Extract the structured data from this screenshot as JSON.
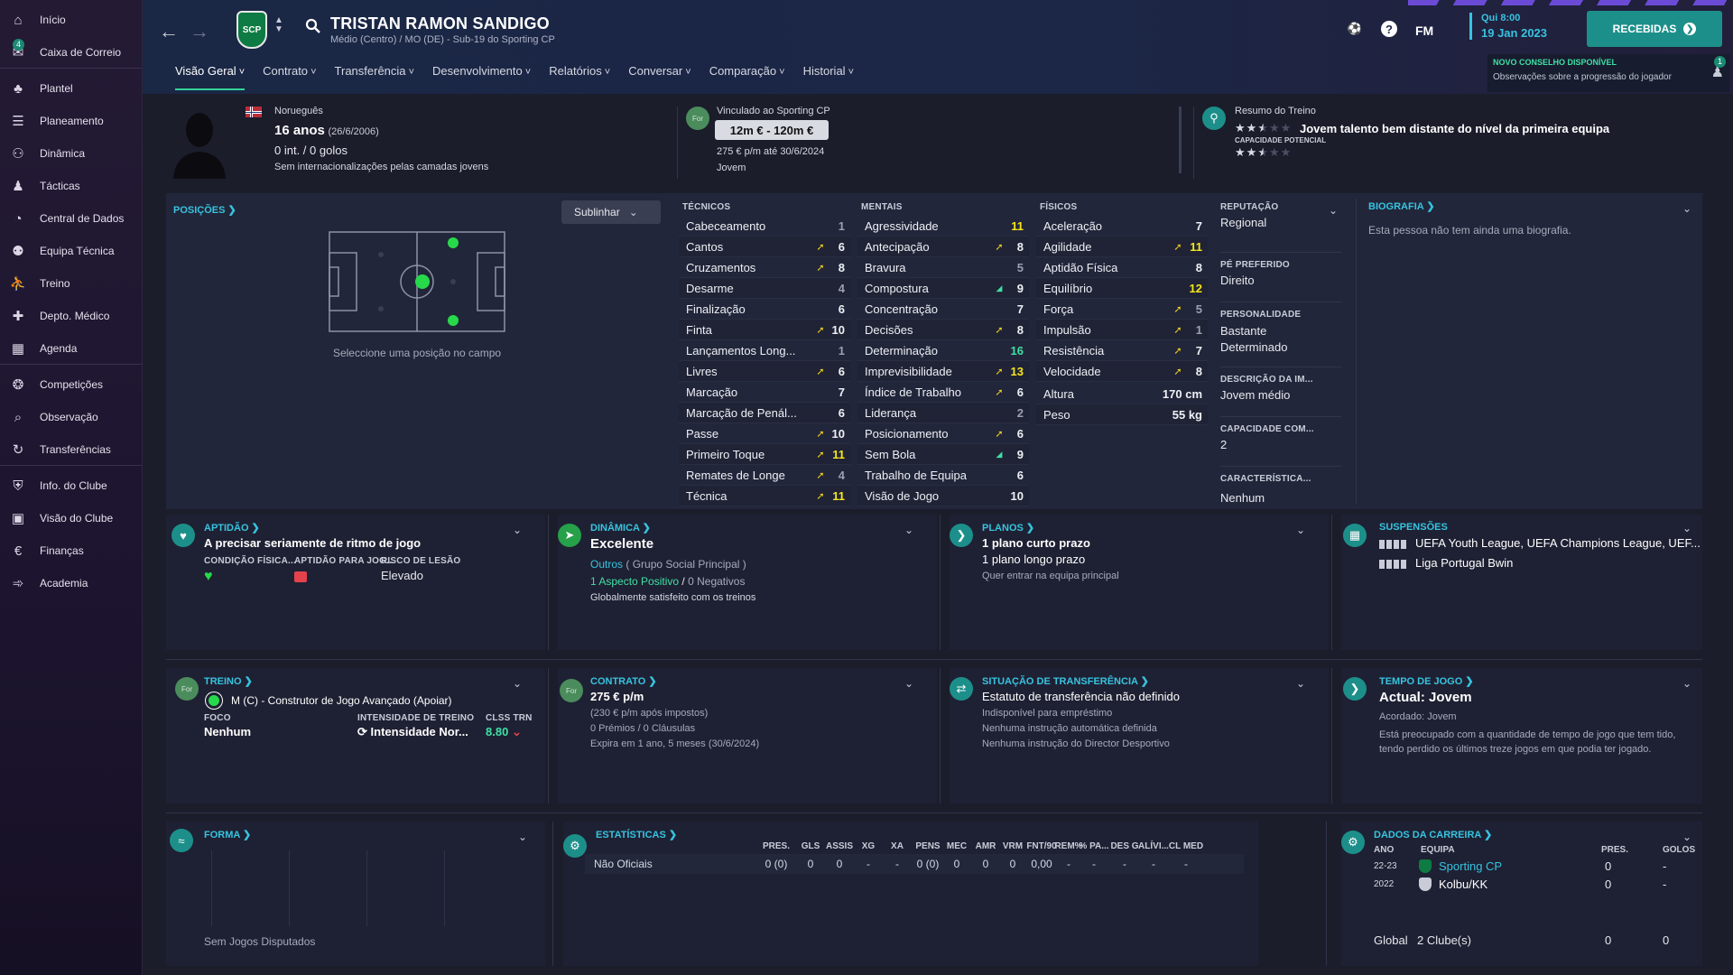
{
  "sidebar": {
    "items": [
      {
        "label": "Início",
        "icon": "home-icon"
      },
      {
        "label": "Caixa de Correio",
        "icon": "mail-icon",
        "badge": "4"
      },
      {
        "label": "Plantel",
        "icon": "shirt-icon"
      },
      {
        "label": "Planeamento",
        "icon": "planner-icon"
      },
      {
        "label": "Dinâmica",
        "icon": "people-icon"
      },
      {
        "label": "Tácticas",
        "icon": "tactics-icon"
      },
      {
        "label": "Central de Dados",
        "icon": "data-icon"
      },
      {
        "label": "Equipa Técnica",
        "icon": "staff-icon"
      },
      {
        "label": "Treino",
        "icon": "training-icon"
      },
      {
        "label": "Depto. Médico",
        "icon": "medical-icon"
      },
      {
        "label": "Agenda",
        "icon": "calendar-icon"
      },
      {
        "label": "Competições",
        "icon": "trophy-icon"
      },
      {
        "label": "Observação",
        "icon": "scout-icon"
      },
      {
        "label": "Transferências",
        "icon": "transfer-icon"
      },
      {
        "label": "Info. do Clube",
        "icon": "club-info-icon"
      },
      {
        "label": "Visão do Clube",
        "icon": "club-vision-icon"
      },
      {
        "label": "Finanças",
        "icon": "finance-icon"
      },
      {
        "label": "Academia",
        "icon": "academy-icon"
      }
    ]
  },
  "header": {
    "crest_text": "SCP",
    "player_name": "TRISTAN RAMON SANDIGO",
    "player_sub": "Médio (Centro) / MO (DE) - Sub-19 do Sporting CP",
    "tabs": [
      "Visão Geral",
      "Contrato",
      "Transferência",
      "Desenvolvimento",
      "Relatórios",
      "Conversar",
      "Comparação",
      "Historial"
    ],
    "fm": "FM",
    "time": "Qui 8:00",
    "date": "19 Jan 2023",
    "received": "RECEBIDAS",
    "notif_title": "NOVO CONSELHO DISPONÍVEL",
    "notif_count": "1",
    "notif_text": "Observações sobre a progressão do jogador"
  },
  "profile": {
    "nationality": "Norueguês",
    "age": "16 anos",
    "dob": "(26/6/2006)",
    "caps": "0 int. / 0 golos",
    "youth": "Sem internacionalizações pelas camadas jovens",
    "club_badge": "For",
    "contract_title": "Vinculado ao Sporting CP",
    "value": "12m € - 120m €",
    "wage": "275 € p/m até 30/6/2024",
    "status": "Jovem",
    "training_title": "Resumo do Treino",
    "training_text": "Jovem talento bem distante do nível da primeira equipa",
    "potential_label": "CAPACIDADE POTENCIAL",
    "current_stars": 2.5,
    "potential_stars": 2.5
  },
  "positions": {
    "title": "POSIÇÕES",
    "highlight": "Sublinhar",
    "hint": "Seleccione uma posição no campo"
  },
  "attributes": {
    "tecnicos": {
      "title": "TÉCNICOS",
      "rows": [
        [
          "Cabeceamento",
          "",
          "1"
        ],
        [
          "Cantos",
          "up",
          "6"
        ],
        [
          "Cruzamentos",
          "up",
          "8"
        ],
        [
          "Desarme",
          "",
          "4"
        ],
        [
          "Finalização",
          "",
          "6"
        ],
        [
          "Finta",
          "up",
          "10"
        ],
        [
          "Lançamentos Long...",
          "",
          "1"
        ],
        [
          "Livres",
          "up",
          "6"
        ],
        [
          "Marcação",
          "",
          "7"
        ],
        [
          "Marcação de Penál...",
          "",
          "6"
        ],
        [
          "Passe",
          "up",
          "10"
        ],
        [
          "Primeiro Toque",
          "up",
          "11"
        ],
        [
          "Remates de Longe",
          "up",
          "4"
        ],
        [
          "Técnica",
          "up",
          "11"
        ]
      ]
    },
    "mentais": {
      "title": "MENTAIS",
      "rows": [
        [
          "Agressividade",
          "",
          "11"
        ],
        [
          "Antecipação",
          "up",
          "8"
        ],
        [
          "Bravura",
          "",
          "5"
        ],
        [
          "Compostura",
          "up-g",
          "9"
        ],
        [
          "Concentração",
          "",
          "7"
        ],
        [
          "Decisões",
          "up",
          "8"
        ],
        [
          "Determinação",
          "",
          "16"
        ],
        [
          "Imprevisibilidade",
          "up",
          "13"
        ],
        [
          "Índice de Trabalho",
          "up",
          "6"
        ],
        [
          "Liderança",
          "",
          "2"
        ],
        [
          "Posicionamento",
          "up",
          "6"
        ],
        [
          "Sem Bola",
          "up-g",
          "9"
        ],
        [
          "Trabalho de Equipa",
          "",
          "6"
        ],
        [
          "Visão de Jogo",
          "",
          "10"
        ]
      ]
    },
    "fisicos": {
      "title": "FÍSICOS",
      "rows": [
        [
          "Aceleração",
          "",
          "7"
        ],
        [
          "Agilidade",
          "up",
          "11"
        ],
        [
          "Aptidão Física",
          "",
          "8"
        ],
        [
          "Equilíbrio",
          "",
          "12"
        ],
        [
          "Força",
          "up",
          "5"
        ],
        [
          "Impulsão",
          "up",
          "1"
        ],
        [
          "Resistência",
          "up",
          "7"
        ],
        [
          "Velocidade",
          "up",
          "8"
        ]
      ],
      "height_label": "Altura",
      "height": "170 cm",
      "weight_label": "Peso",
      "weight": "55 kg"
    }
  },
  "info": {
    "reputation_label": "REPUTAÇÃO",
    "reputation": "Regional",
    "foot_label": "PÉ PREFERIDO",
    "foot": "Direito",
    "personality_label": "PERSONALIDADE",
    "personality": "Bastante Determinado",
    "media_label": "DESCRIÇÃO DA IM...",
    "media": "Jovem médio",
    "command_label": "CAPACIDADE COM...",
    "command": "2",
    "traits_label": "CARACTERÍSTICA...",
    "traits": "Nenhum",
    "bio_title": "BIOGRAFIA",
    "bio_text": "Esta pessoa não tem ainda uma biografia."
  },
  "panels": {
    "aptidao": {
      "title": "APTIDÃO",
      "text": "A precisar seriamente de ritmo de jogo",
      "l1": "CONDIÇÃO FÍSICA...",
      "l2": "APTIDÃO PARA JOG...",
      "l3": "RISCO DE LESÃO",
      "v3": "Elevado"
    },
    "dinamica": {
      "title": "DINÂMICA",
      "text": "Excelente",
      "group": "Outros",
      "group_sub": "( Grupo Social Principal )",
      "pos": "1 Aspecto Positivo",
      "sep": "/",
      "neg": "0 Negativos",
      "note": "Globalmente satisfeito com os treinos"
    },
    "planos": {
      "title": "PLANOS",
      "l1": "1 plano curto prazo",
      "l2": "1 plano longo prazo",
      "note": "Quer entrar na equipa principal"
    },
    "suspensoes": {
      "title": "SUSPENSÕES",
      "l1": "UEFA Youth League, UEFA Champions League, UEF...",
      "l2": "Liga Portugal Bwin"
    },
    "treino": {
      "title": "TREINO",
      "role": "M (C) - Construtor de Jogo Avançado (Apoiar)",
      "foco_label": "FOCO",
      "foco": "Nenhum",
      "int_label": "INTENSIDADE DE TREINO",
      "int": "Intensidade Nor...",
      "clss_label": "CLSS TRN",
      "clss": "8.80"
    },
    "contrato": {
      "title": "CONTRATO",
      "wage": "275 € p/m",
      "net": "(230 € p/m após impostos)",
      "clauses": "0 Prémios / 0 Cláusulas",
      "expires": "Expira em 1 ano, 5 meses (30/6/2024)"
    },
    "transfer": {
      "title": "SITUAÇÃO DE TRANSFERÊNCIA",
      "status": "Estatuto de transferência não definido",
      "l1": "Indisponível para empréstimo",
      "l2": "Nenhuma instrução automática definida",
      "l3": "Nenhuma instrução do Director Desportivo"
    },
    "tempo": {
      "title": "TEMPO DE JOGO",
      "current": "Actual: Jovem",
      "agreed": "Acordado:  Jovem",
      "note": "Está preocupado com a quantidade de tempo de jogo que tem tido, tendo perdido os últimos treze jogos em que podia ter jogado."
    },
    "forma": {
      "title": "FORMA",
      "empty": "Sem Jogos Disputados"
    },
    "estatisticas": {
      "title": "ESTATÍSTICAS",
      "headers": [
        "PRES.",
        "GLS",
        "ASSIS",
        "XG",
        "XA",
        "PENS",
        "MEC",
        "AMR",
        "VRM",
        "FNT/90",
        "REM%",
        "% PA...",
        "DES G",
        "ALÍVI...",
        "CL MED"
      ],
      "row_label": "Não Oficiais",
      "row": [
        "0 (0)",
        "0",
        "0",
        "-",
        "-",
        "0 (0)",
        "0",
        "0",
        "0",
        "0,00",
        "-",
        "-",
        "-",
        "-",
        "-"
      ]
    },
    "carreira": {
      "title": "DADOS DA CARREIRA",
      "h_year": "ANO",
      "h_team": "EQUIPA",
      "h_apps": "PRES.",
      "h_goals": "GOLOS",
      "rows": [
        [
          "22-23",
          "Sporting CP",
          "0",
          "-"
        ],
        [
          "2022",
          "Kolbu/KK",
          "0",
          "-"
        ]
      ],
      "total_label": "Global",
      "total_clubs": "2 Clube(s)",
      "total_apps": "0",
      "total_goals": "0"
    }
  }
}
